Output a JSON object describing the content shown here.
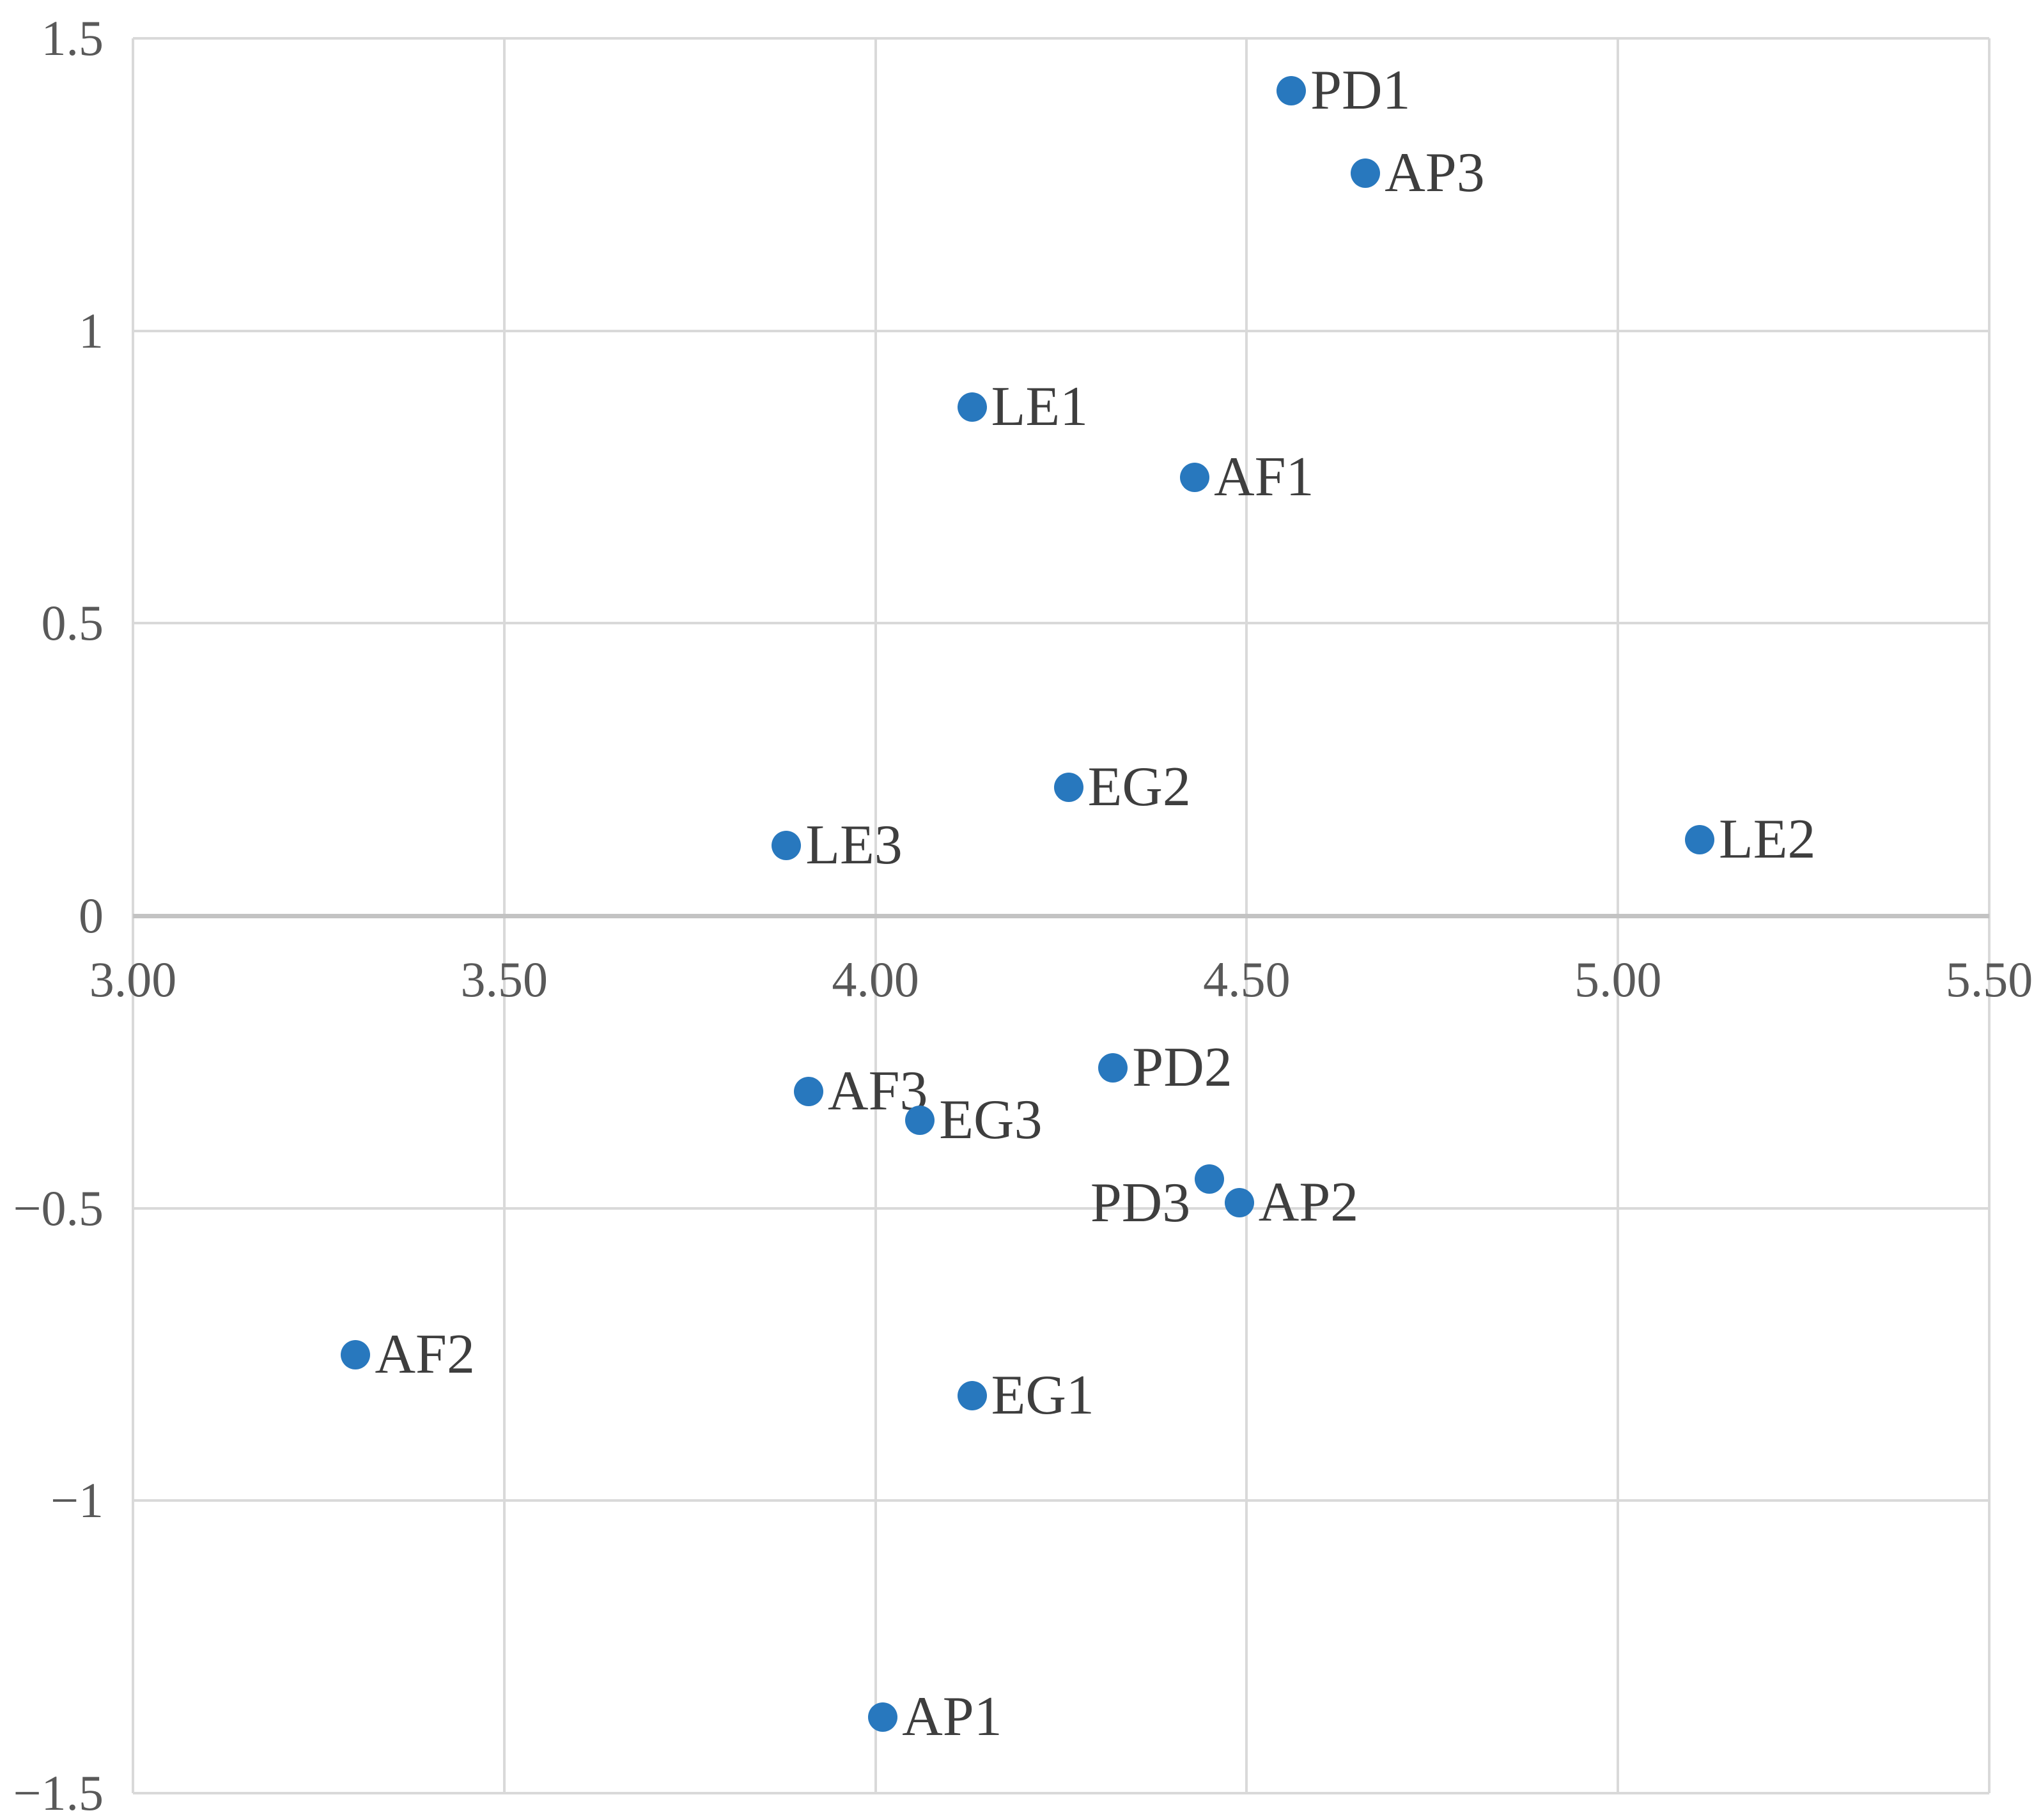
{
  "chart_data": {
    "type": "scatter",
    "title": "",
    "xlabel": "",
    "ylabel": "",
    "xlim": [
      3.0,
      5.5
    ],
    "ylim": [
      -1.5,
      1.5
    ],
    "grid": true,
    "legend": "none",
    "x_ticks": [
      {
        "value": 3.0,
        "label": "3.00"
      },
      {
        "value": 3.5,
        "label": "3.50"
      },
      {
        "value": 4.0,
        "label": "4.00"
      },
      {
        "value": 4.5,
        "label": "4.50"
      },
      {
        "value": 5.0,
        "label": "5.00"
      },
      {
        "value": 5.5,
        "label": "5.50"
      }
    ],
    "y_ticks": [
      {
        "value": 1.5,
        "label": "1.5"
      },
      {
        "value": 1.0,
        "label": "1"
      },
      {
        "value": 0.5,
        "label": "0.5"
      },
      {
        "value": 0.0,
        "label": "0"
      },
      {
        "value": -0.5,
        "label": "−0.5"
      },
      {
        "value": -1.0,
        "label": "−1"
      },
      {
        "value": -1.5,
        "label": "−1.5"
      }
    ],
    "points": [
      {
        "label": "PD1",
        "x": 4.56,
        "y": 1.41,
        "label_side": "right",
        "label_dy": 0
      },
      {
        "label": "AP3",
        "x": 4.66,
        "y": 1.27,
        "label_side": "right",
        "label_dy": 0
      },
      {
        "label": "LE1",
        "x": 4.13,
        "y": 0.87,
        "label_side": "right",
        "label_dy": 0
      },
      {
        "label": "AF1",
        "x": 4.43,
        "y": 0.75,
        "label_side": "right",
        "label_dy": 0
      },
      {
        "label": "EG2",
        "x": 4.26,
        "y": 0.22,
        "label_side": "right",
        "label_dy": 0
      },
      {
        "label": "LE3",
        "x": 3.88,
        "y": 0.12,
        "label_side": "right",
        "label_dy": 0
      },
      {
        "label": "LE2",
        "x": 5.11,
        "y": 0.13,
        "label_side": "right",
        "label_dy": 0
      },
      {
        "label": "PD2",
        "x": 4.32,
        "y": -0.26,
        "label_side": "right",
        "label_dy": 0
      },
      {
        "label": "AF3",
        "x": 3.91,
        "y": -0.3,
        "label_side": "right",
        "label_dy": 0
      },
      {
        "label": "EG3",
        "x": 4.06,
        "y": -0.35,
        "label_side": "right",
        "label_dy": 0
      },
      {
        "label": "PD3",
        "x": 4.45,
        "y": -0.45,
        "label_side": "left",
        "label_dy": 38
      },
      {
        "label": "AP2",
        "x": 4.49,
        "y": -0.49,
        "label_side": "right",
        "label_dy": 0
      },
      {
        "label": "AF2",
        "x": 3.3,
        "y": -0.75,
        "label_side": "right",
        "label_dy": 0
      },
      {
        "label": "EG1",
        "x": 4.13,
        "y": -0.82,
        "label_side": "right",
        "label_dy": 0
      },
      {
        "label": "AP1",
        "x": 4.01,
        "y": -1.37,
        "label_side": "right",
        "label_dy": 0
      }
    ],
    "colors": {
      "point": "#2878BE",
      "gridline": "#D9D9D9",
      "zero_axis": "#C3C3C3",
      "tick_text": "#595959",
      "point_label_text": "#3E3E3E",
      "background": "#FFFFFF"
    }
  }
}
